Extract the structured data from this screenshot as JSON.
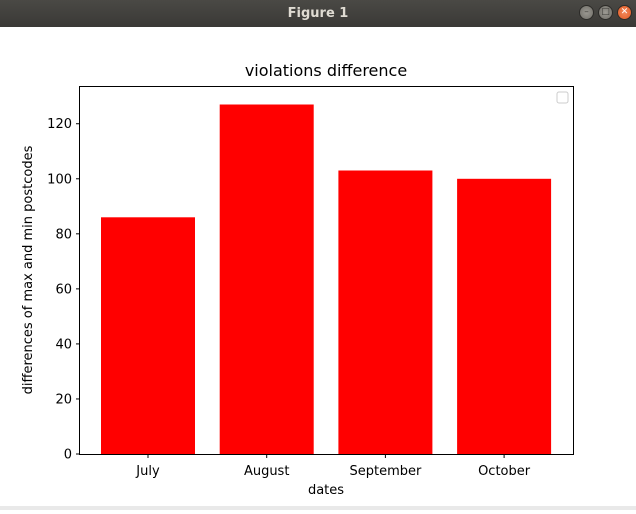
{
  "window": {
    "title": "Figure 1",
    "controls": [
      "minimize-icon",
      "maximize-icon",
      "close-icon"
    ]
  },
  "chart_data": {
    "type": "bar",
    "title": "violations difference",
    "xlabel": "dates",
    "ylabel": "differences of max and min postcodes",
    "categories": [
      "July",
      "August",
      "September",
      "October"
    ],
    "values": [
      86,
      127,
      103,
      100
    ],
    "ylim": [
      0,
      133.35
    ],
    "yticks": [
      0,
      20,
      40,
      60,
      80,
      100,
      120
    ],
    "bar_color": "#ff0000",
    "grid": false,
    "legend": {
      "location": "top-right",
      "entries": []
    }
  }
}
